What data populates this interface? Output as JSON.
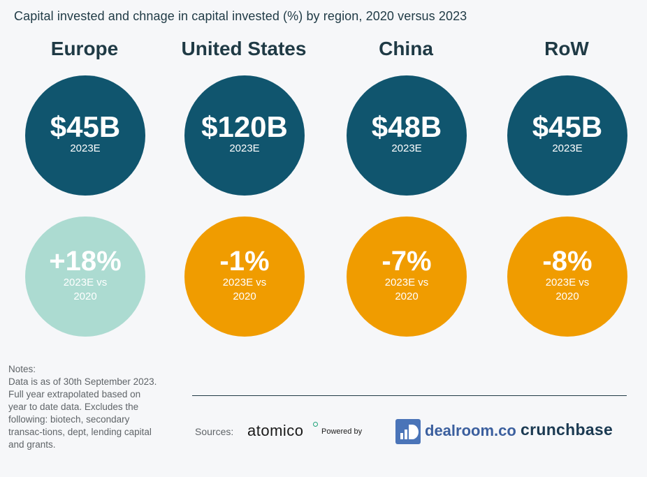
{
  "title": "Capital invested and chnage in capital invested (%) by region, 2020 versus 2023",
  "chart_data": {
    "type": "table",
    "title": "Capital invested and chnage in capital invested (%) by region, 2020 versus 2023",
    "regions": [
      {
        "name": "Europe",
        "amount": "$45B",
        "amount_label": "2023E",
        "change": "+18%",
        "change_label": "2023E vs 2020",
        "change_color": "#acdbd1"
      },
      {
        "name": "United States",
        "amount": "$120B",
        "amount_label": "2023E",
        "change": "-1%",
        "change_label": "2023E vs 2020",
        "change_color": "#f09c00"
      },
      {
        "name": "China",
        "amount": "$48B",
        "amount_label": "2023E",
        "change": "-7%",
        "change_label": "2023E vs 2020",
        "change_color": "#f09c00"
      },
      {
        "name": "RoW",
        "amount": "$45B",
        "amount_label": "2023E",
        "change": "-8%",
        "change_label": "2023E vs 2020",
        "change_color": "#f09c00"
      }
    ],
    "amount_color": "#10556e"
  },
  "notes": {
    "heading": "Notes:",
    "text": "Data is as of 30th September 2023. Full year extrapolated based on year to date data. Excludes the following: biotech, secondary transac-tions, dept, lending capital and grants."
  },
  "sources": {
    "label": "Sources:",
    "atomico": "atomico",
    "powered_by": "Powered by",
    "dealroom": "dealroom.co",
    "crunchbase": "crunchbase"
  }
}
